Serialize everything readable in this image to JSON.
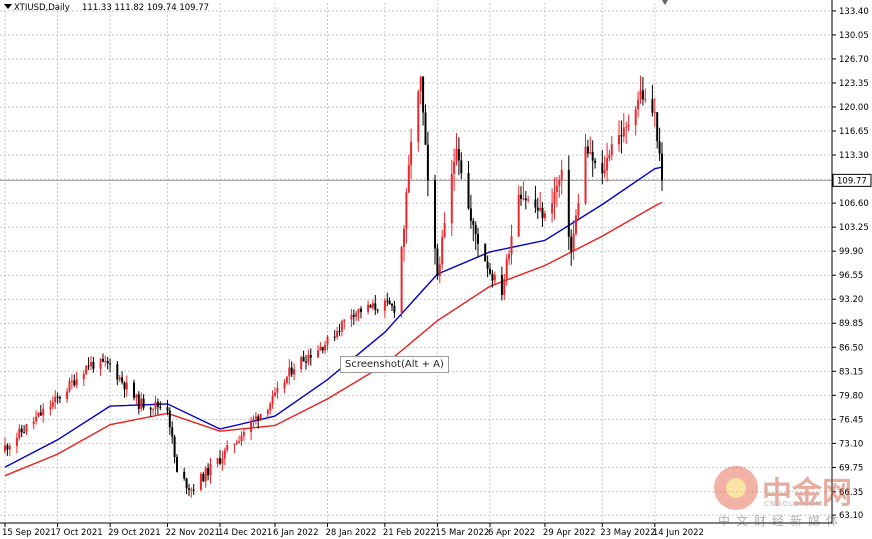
{
  "header": {
    "title": "XTIUSD,Daily",
    "ohlc": "111.33 111.82 109.74 109.77"
  },
  "tooltip": "Screenshot(Alt + A)",
  "price_label": "109.77",
  "watermark": {
    "brand": "中金网",
    "url": "CNGOLD.COM",
    "tagline": "中文财经新媒体"
  },
  "colors": {
    "background": "#ffffff",
    "grid": "#c8c8c8",
    "bull_candle": "#e8262b",
    "bear_candle": "#000000",
    "ma_fast": "#0000cc",
    "ma_slow": "#ee1c1c",
    "axis": "#000000"
  },
  "chart_data": {
    "type": "candlestick",
    "title": "XTIUSD,Daily",
    "x_tick_labels": [
      "15 Sep 2021",
      "7 Oct 2021",
      "29 Oct 2021",
      "22 Nov 2021",
      "14 Dec 2021",
      "6 Jan 2022",
      "28 Jan 2022",
      "21 Feb 2022",
      "15 Mar 2022",
      "6 Apr 2022",
      "29 Apr 2022",
      "23 May 2022",
      "14 Jun 2022"
    ],
    "y_ticks": [
      63.1,
      66.35,
      69.75,
      73.1,
      76.45,
      79.8,
      83.15,
      86.5,
      89.85,
      93.2,
      96.55,
      99.9,
      103.25,
      106.6,
      109.95,
      113.3,
      116.65,
      120.0,
      123.35,
      126.7,
      130.05,
      133.4
    ],
    "y_tick_labels": [
      "63.10",
      "66.35",
      "69.75",
      "73.10",
      "76.45",
      "79.80",
      "83.15",
      "86.50",
      "89.85",
      "93.20",
      "96.55",
      "99.90",
      "103.25",
      "106.60",
      "109.95",
      "113.30",
      "116.65",
      "120.00",
      "123.35",
      "126.70",
      "130.05",
      "133.40"
    ],
    "ylim": [
      62.0,
      134.5
    ],
    "current_price": 109.77,
    "close_series": [
      [
        "15 Sep 2021",
        72.6
      ],
      [
        "7 Oct 2021",
        79.3
      ],
      [
        "20 Oct 2021",
        84.2
      ],
      [
        "29 Oct 2021",
        84.0
      ],
      [
        "10 Nov 2021",
        78.7
      ],
      [
        "22 Nov 2021",
        78.2
      ],
      [
        "26 Nov 2021",
        68.8
      ],
      [
        "2 Dec 2021",
        66.8
      ],
      [
        "14 Dec 2021",
        71.0
      ],
      [
        "28 Dec 2021",
        76.3
      ],
      [
        "6 Jan 2022",
        79.5
      ],
      [
        "14 Jan 2022",
        84.0
      ],
      [
        "28 Jan 2022",
        87.3
      ],
      [
        "7 Feb 2022",
        91.4
      ],
      [
        "21 Feb 2022",
        92.4
      ],
      [
        "25 Feb 2022",
        92.0
      ],
      [
        "1 Mar 2022",
        103.3
      ],
      [
        "4 Mar 2022",
        115.5
      ],
      [
        "8 Mar 2022",
        123.7
      ],
      [
        "11 Mar 2022",
        109.3
      ],
      [
        "15 Mar 2022",
        96.5
      ],
      [
        "23 Mar 2022",
        114.9
      ],
      [
        "29 Mar 2022",
        104.0
      ],
      [
        "6 Apr 2022",
        97.0
      ],
      [
        "11 Apr 2022",
        94.3
      ],
      [
        "18 Apr 2022",
        108.2
      ],
      [
        "29 Apr 2022",
        104.7
      ],
      [
        "6 May 2022",
        110.5
      ],
      [
        "10 May 2022",
        99.8
      ],
      [
        "16 May 2022",
        114.2
      ],
      [
        "23 May 2022",
        110.3
      ],
      [
        "27 May 2022",
        115.1
      ],
      [
        "2 Jun 2022",
        116.9
      ],
      [
        "8 Jun 2022",
        122.1
      ],
      [
        "10 Jun 2022",
        120.7
      ],
      [
        "14 Jun 2022",
        118.9
      ],
      [
        "17 Jun 2022",
        109.77
      ]
    ],
    "series": [
      {
        "values": [
          [
            "15 Sep 2021",
            69.8
          ],
          [
            "7 Oct 2021",
            73.6
          ],
          [
            "29 Oct 2021",
            78.3
          ],
          [
            "22 Nov 2021",
            78.6
          ],
          [
            "14 Dec 2021",
            75.1
          ],
          [
            "6 Jan 2022",
            76.9
          ],
          [
            "28 Jan 2022",
            82.0
          ],
          [
            "21 Feb 2022",
            88.6
          ],
          [
            "15 Mar 2022",
            96.7
          ],
          [
            "6 Apr 2022",
            99.8
          ],
          [
            "29 Apr 2022",
            101.4
          ],
          [
            "23 May 2022",
            106.4
          ],
          [
            "14 Jun 2022",
            111.4
          ],
          [
            "17 Jun 2022",
            111.6
          ]
        ]
      },
      {
        "values": [
          [
            "15 Sep 2021",
            68.6
          ],
          [
            "7 Oct 2021",
            71.6
          ],
          [
            "29 Oct 2021",
            75.7
          ],
          [
            "22 Nov 2021",
            77.3
          ],
          [
            "14 Dec 2021",
            74.8
          ],
          [
            "6 Jan 2022",
            75.6
          ],
          [
            "28 Jan 2022",
            79.3
          ],
          [
            "21 Feb 2022",
            84.1
          ],
          [
            "15 Mar 2022",
            90.2
          ],
          [
            "6 Apr 2022",
            95.0
          ],
          [
            "29 Apr 2022",
            97.9
          ],
          [
            "23 May 2022",
            102.0
          ],
          [
            "14 Jun 2022",
            106.2
          ],
          [
            "17 Jun 2022",
            106.7
          ]
        ]
      }
    ],
    "grid": true,
    "legend": "none"
  }
}
